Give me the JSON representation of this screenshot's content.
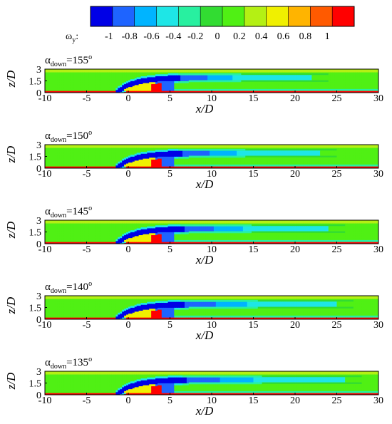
{
  "colorbar": {
    "variable": "ω",
    "subscript": "y",
    "suffix": ":",
    "levels": [
      -1,
      -0.8,
      -0.6,
      -0.4,
      -0.2,
      0,
      0.2,
      0.4,
      0.6,
      0.8,
      1
    ],
    "level_labels": [
      "-1",
      "-0.8",
      "-0.6",
      "-0.4",
      "-0.2",
      "0",
      "0.2",
      "0.4",
      "0.6",
      "0.8",
      "1"
    ],
    "colors": [
      "#0000e6",
      "#1e64ff",
      "#00b4ff",
      "#1ee6e6",
      "#28f0a0",
      "#32dc32",
      "#50f014",
      "#b4f014",
      "#f0f000",
      "#ffb400",
      "#ff5a00",
      "#ff0000"
    ]
  },
  "chart_data": [
    {
      "type": "heatmap",
      "alpha_symbol": "α",
      "alpha_subscript": "down",
      "alpha_value": "=155",
      "alpha_unit": "o",
      "xlabel": "x/D",
      "ylabel": "z/D",
      "xlim": [
        -10,
        30
      ],
      "ylim": [
        0,
        3
      ],
      "xticks": [
        -10,
        -5,
        0,
        5,
        10,
        15,
        20,
        25,
        30
      ],
      "xtick_labels": [
        "-10",
        "-5",
        "0",
        "5",
        "10",
        "15",
        "20",
        "25",
        "30"
      ],
      "yticks": [
        0,
        1.5,
        3
      ],
      "ytick_labels": [
        "0",
        "1.5",
        "3"
      ]
    },
    {
      "type": "heatmap",
      "alpha_symbol": "α",
      "alpha_subscript": "down",
      "alpha_value": "=150",
      "alpha_unit": "o",
      "xlabel": "x/D",
      "ylabel": "z/D",
      "xlim": [
        -10,
        30
      ],
      "ylim": [
        0,
        3
      ],
      "xticks": [
        -10,
        -5,
        0,
        5,
        10,
        15,
        20,
        25,
        30
      ],
      "xtick_labels": [
        "-10",
        "-5",
        "0",
        "5",
        "10",
        "15",
        "20",
        "25",
        "30"
      ],
      "yticks": [
        0,
        1.5,
        3
      ],
      "ytick_labels": [
        "0",
        "1.5",
        "3"
      ]
    },
    {
      "type": "heatmap",
      "alpha_symbol": "α",
      "alpha_subscript": "down",
      "alpha_value": "=145",
      "alpha_unit": "o",
      "xlabel": "x/D",
      "ylabel": "z/D",
      "xlim": [
        -10,
        30
      ],
      "ylim": [
        0,
        3
      ],
      "xticks": [
        -10,
        -5,
        0,
        5,
        10,
        15,
        20,
        25,
        30
      ],
      "xtick_labels": [
        "-10",
        "-5",
        "0",
        "5",
        "10",
        "15",
        "20",
        "25",
        "30"
      ],
      "yticks": [
        0,
        1.5,
        3
      ],
      "ytick_labels": [
        "0",
        "1.5",
        "3"
      ]
    },
    {
      "type": "heatmap",
      "alpha_symbol": "α",
      "alpha_subscript": "down",
      "alpha_value": "=140",
      "alpha_unit": "o",
      "xlabel": "x/D",
      "ylabel": "z/D",
      "xlim": [
        -10,
        30
      ],
      "ylim": [
        0,
        3
      ],
      "xticks": [
        -10,
        -5,
        0,
        5,
        10,
        15,
        20,
        25,
        30
      ],
      "xtick_labels": [
        "-10",
        "-5",
        "0",
        "5",
        "10",
        "15",
        "20",
        "25",
        "30"
      ],
      "yticks": [
        0,
        1.5,
        3
      ],
      "ytick_labels": [
        "0",
        "1.5",
        "3"
      ]
    },
    {
      "type": "heatmap",
      "alpha_symbol": "α",
      "alpha_subscript": "down",
      "alpha_value": "=135",
      "alpha_unit": "o",
      "xlabel": "x/D",
      "ylabel": "z/D",
      "xlim": [
        -10,
        30
      ],
      "ylim": [
        0,
        3
      ],
      "xticks": [
        -10,
        -5,
        0,
        5,
        10,
        15,
        20,
        25,
        30
      ],
      "xtick_labels": [
        "-10",
        "-5",
        "0",
        "5",
        "10",
        "15",
        "20",
        "25",
        "30"
      ],
      "yticks": [
        0,
        1.5,
        3
      ],
      "ytick_labels": [
        "0",
        "1.5",
        "3"
      ]
    }
  ]
}
